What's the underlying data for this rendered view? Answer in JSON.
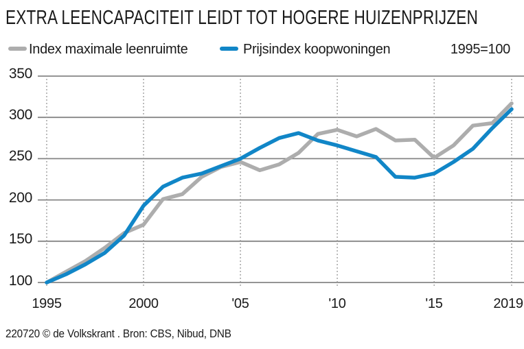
{
  "title": "EXTRA LEENCAPACITEIT LEIDT TOT HOGERE HUIZENPRIJZEN",
  "legend": {
    "series1_label": "Index maximale leenruimte",
    "series2_label": "Prijsindex koopwoningen",
    "note": "1995=100"
  },
  "axes": {
    "y_ticks": [
      "350",
      "300",
      "250",
      "200",
      "150",
      "100"
    ],
    "x_ticks": [
      "1995",
      "2000",
      "'05",
      "'10",
      "'15",
      "2019"
    ]
  },
  "footer": "220720 © de Volkskrant . Bron: CBS, Nibud, DNB",
  "colors": {
    "series1": "#adadad",
    "series2": "#1186c7",
    "grid": "#858585",
    "dotted": "#9e9e9e",
    "text": "#1a1a1a",
    "background": "#ffffff"
  },
  "chart_data": {
    "type": "line",
    "title": "EXTRA LEENCAPACITEIT LEIDT TOT HOGERE HUIZENPRIJZEN",
    "note": "1995=100",
    "xlabel": "",
    "ylabel": "",
    "ylim": [
      100,
      350
    ],
    "yticks": [
      350,
      300,
      250,
      200,
      150,
      100
    ],
    "xtick_years": [
      1995,
      2000,
      2005,
      2010,
      2015,
      2019
    ],
    "xtick_labels": [
      "1995",
      "2000",
      "'05",
      "'10",
      "'15",
      "2019"
    ],
    "grid": "horizontal solid gray, vertical dotted at labeled years",
    "legend_position": "top",
    "x": [
      1995,
      1996,
      1997,
      1998,
      1999,
      2000,
      2001,
      2002,
      2003,
      2004,
      2005,
      2006,
      2007,
      2008,
      2009,
      2010,
      2011,
      2012,
      2013,
      2014,
      2015,
      2016,
      2017,
      2018,
      2019
    ],
    "series": [
      {
        "name": "Index maximale leenruimte",
        "color": "#adadad",
        "values": [
          100,
          113,
          126,
          142,
          160,
          170,
          201,
          207,
          228,
          240,
          246,
          236,
          243,
          257,
          280,
          285,
          277,
          286,
          272,
          273,
          251,
          266,
          290,
          293,
          317
        ]
      },
      {
        "name": "Prijsindex koopwoningen",
        "color": "#1186c7",
        "values": [
          100,
          110,
          122,
          136,
          157,
          193,
          216,
          227,
          232,
          241,
          250,
          263,
          275,
          281,
          272,
          266,
          259,
          252,
          228,
          227,
          232,
          246,
          262,
          287,
          310
        ]
      }
    ]
  }
}
